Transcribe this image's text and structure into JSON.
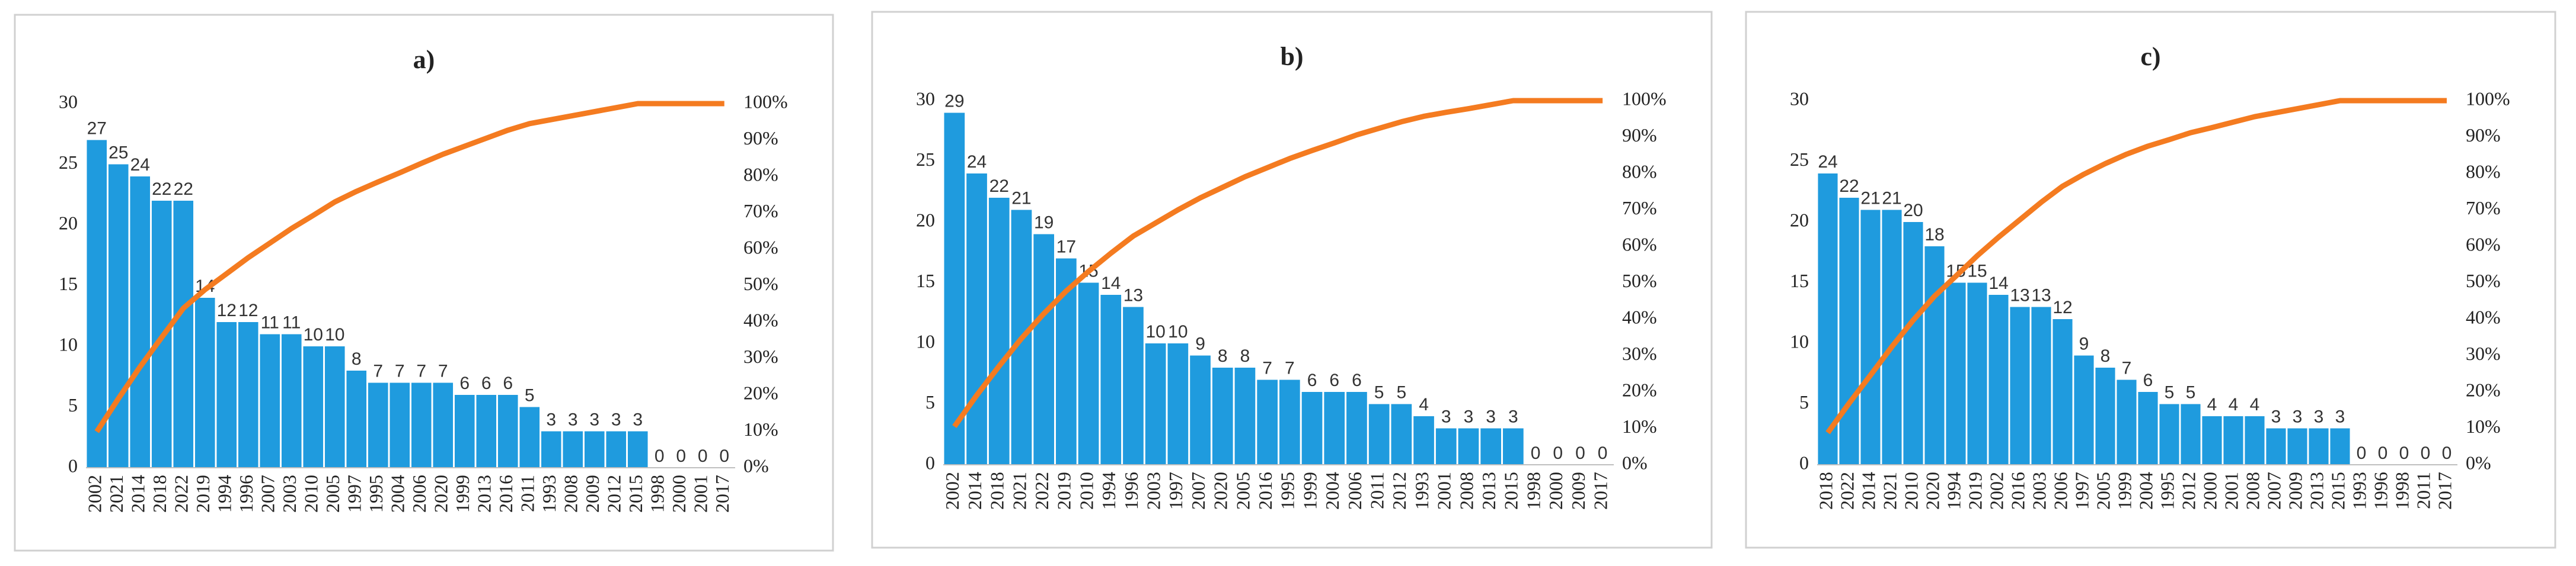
{
  "chart_data": [
    {
      "type": "pareto",
      "title": "a)",
      "categories": [
        "2002",
        "2021",
        "2014",
        "2018",
        "2022",
        "2019",
        "1994",
        "1996",
        "2007",
        "2003",
        "2010",
        "2005",
        "1997",
        "1995",
        "2004",
        "2006",
        "2020",
        "1999",
        "2013",
        "2016",
        "2011",
        "1993",
        "2008",
        "2009",
        "2012",
        "2015",
        "1998",
        "2000",
        "2001",
        "2017"
      ],
      "series": [
        {
          "color": "#1f9bde",
          "values": [
            27,
            25,
            24,
            22,
            22,
            14,
            12,
            12,
            11,
            11,
            10,
            10,
            8,
            7,
            7,
            7,
            7,
            6,
            6,
            6,
            5,
            3,
            3,
            3,
            3,
            3,
            0,
            0,
            0,
            0
          ]
        },
        {
          "color": "#f47b20",
          "axis": "y2",
          "values": [
            9.9,
            19.0,
            27.7,
            35.8,
            43.8,
            48.9,
            53.3,
            57.7,
            61.7,
            65.7,
            69.3,
            73.0,
            75.9,
            78.5,
            81.0,
            83.6,
            86.1,
            88.3,
            90.5,
            92.7,
            94.5,
            95.6,
            96.7,
            97.8,
            98.9,
            100,
            100,
            100,
            100,
            100
          ]
        }
      ],
      "ylim": [
        0,
        30
      ],
      "yticks": [
        0,
        5,
        10,
        15,
        20,
        25,
        30
      ],
      "y2lim": [
        0,
        100
      ],
      "y2ticks": [
        {
          "value": 0,
          "label": "0%"
        },
        {
          "value": 10,
          "label": "10%"
        },
        {
          "value": 20,
          "label": "20%"
        },
        {
          "value": 30,
          "label": "30%"
        },
        {
          "value": 40,
          "label": "40%"
        },
        {
          "value": 50,
          "label": "50%"
        },
        {
          "value": 60,
          "label": "60%"
        },
        {
          "value": 70,
          "label": "70%"
        },
        {
          "value": 80,
          "label": "80%"
        },
        {
          "value": 90,
          "label": "90%"
        },
        {
          "value": 100,
          "label": "100%"
        }
      ]
    },
    {
      "type": "pareto",
      "title": "b)",
      "categories": [
        "2002",
        "2014",
        "2018",
        "2021",
        "2022",
        "2019",
        "2010",
        "1994",
        "1996",
        "2003",
        "1997",
        "2007",
        "2020",
        "2005",
        "2016",
        "1995",
        "1999",
        "2004",
        "2006",
        "2011",
        "2012",
        "1993",
        "2001",
        "2008",
        "2013",
        "2015",
        "1998",
        "2000",
        "2009",
        "2017"
      ],
      "series": [
        {
          "color": "#1f9bde",
          "values": [
            29,
            24,
            22,
            21,
            19,
            17,
            15,
            14,
            13,
            10,
            10,
            9,
            8,
            8,
            7,
            7,
            6,
            6,
            6,
            5,
            5,
            4,
            3,
            3,
            3,
            3,
            0,
            0,
            0,
            0
          ]
        },
        {
          "color": "#f47b20",
          "axis": "y2",
          "values": [
            10.5,
            19.1,
            27.1,
            34.7,
            41.5,
            47.7,
            53.1,
            58.1,
            62.8,
            66.4,
            70.0,
            73.3,
            76.2,
            79.1,
            81.6,
            84.1,
            86.3,
            88.4,
            90.6,
            92.4,
            94.2,
            95.7,
            96.8,
            97.8,
            98.9,
            100,
            100,
            100,
            100,
            100
          ]
        }
      ],
      "ylim": [
        0,
        30
      ],
      "yticks": [
        0,
        5,
        10,
        15,
        20,
        25,
        30
      ],
      "y2lim": [
        0,
        100
      ],
      "y2ticks": [
        {
          "value": 0,
          "label": "0%"
        },
        {
          "value": 10,
          "label": "10%"
        },
        {
          "value": 20,
          "label": "20%"
        },
        {
          "value": 30,
          "label": "30%"
        },
        {
          "value": 40,
          "label": "40%"
        },
        {
          "value": 50,
          "label": "50%"
        },
        {
          "value": 60,
          "label": "60%"
        },
        {
          "value": 70,
          "label": "70%"
        },
        {
          "value": 80,
          "label": "80%"
        },
        {
          "value": 90,
          "label": "90%"
        },
        {
          "value": 100,
          "label": "100%"
        }
      ]
    },
    {
      "type": "pareto",
      "title": "c)",
      "categories": [
        "2018",
        "2022",
        "2014",
        "2021",
        "2010",
        "2020",
        "1994",
        "2019",
        "2002",
        "2016",
        "2003",
        "2006",
        "1997",
        "2005",
        "1999",
        "2004",
        "1995",
        "2012",
        "2000",
        "2001",
        "2008",
        "2007",
        "2009",
        "2013",
        "2015",
        "1993",
        "1996",
        "1998",
        "2011",
        "2017"
      ],
      "series": [
        {
          "color": "#1f9bde",
          "values": [
            24,
            22,
            21,
            21,
            20,
            18,
            15,
            15,
            14,
            13,
            13,
            12,
            9,
            8,
            7,
            6,
            5,
            5,
            4,
            4,
            4,
            3,
            3,
            3,
            3,
            0,
            0,
            0,
            0,
            0
          ]
        },
        {
          "color": "#f47b20",
          "axis": "y2",
          "values": [
            8.8,
            16.9,
            24.6,
            32.4,
            39.7,
            46.3,
            51.8,
            57.4,
            62.5,
            67.3,
            72.1,
            76.5,
            79.8,
            82.7,
            85.3,
            87.5,
            89.3,
            91.2,
            92.6,
            94.1,
            95.6,
            96.7,
            97.8,
            98.9,
            100,
            100,
            100,
            100,
            100,
            100
          ]
        }
      ],
      "ylim": [
        0,
        30
      ],
      "yticks": [
        0,
        5,
        10,
        15,
        20,
        25,
        30
      ],
      "y2lim": [
        0,
        100
      ],
      "y2ticks": [
        {
          "value": 0,
          "label": "0%"
        },
        {
          "value": 10,
          "label": "10%"
        },
        {
          "value": 20,
          "label": "20%"
        },
        {
          "value": 30,
          "label": "30%"
        },
        {
          "value": 40,
          "label": "40%"
        },
        {
          "value": 50,
          "label": "50%"
        },
        {
          "value": 60,
          "label": "60%"
        },
        {
          "value": 70,
          "label": "70%"
        },
        {
          "value": 80,
          "label": "80%"
        },
        {
          "value": 90,
          "label": "90%"
        },
        {
          "value": 100,
          "label": "100%"
        }
      ]
    }
  ]
}
